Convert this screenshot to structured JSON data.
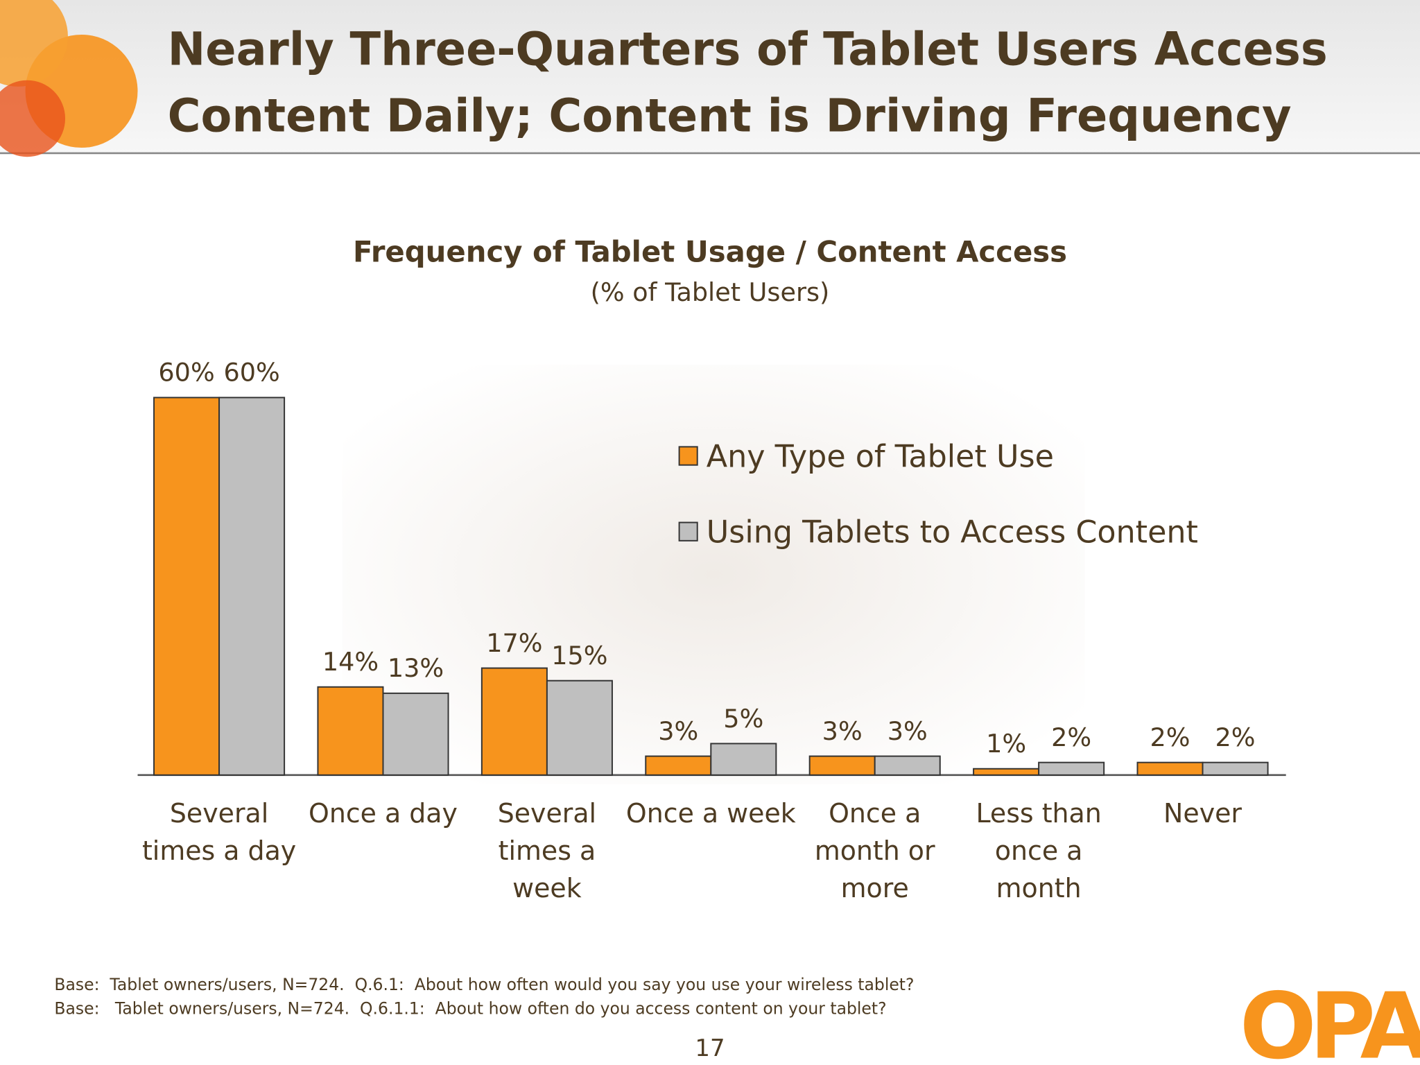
{
  "chart_data": {
    "type": "bar",
    "title": "Nearly Three-Quarters of Tablet Users Access Content Daily; Content is Driving Frequency",
    "chart_title": "Frequency of Tablet Usage / Content Access",
    "subtitle": "(% of Tablet Users)",
    "categories": [
      "Several times a day",
      "Once a day",
      "Several times a week",
      "Once a week",
      "Once a month or more",
      "Less than once a month",
      "Never"
    ],
    "series": [
      {
        "name": "Any Type of Tablet Use",
        "color": "#f7941d",
        "values": [
          60,
          14,
          17,
          3,
          3,
          1,
          2
        ],
        "value_labels": [
          "60%",
          "14%",
          "17%",
          "3%",
          "3%",
          "1%",
          "2%"
        ]
      },
      {
        "name": "Using Tablets to Access Content",
        "color": "#bfbfbf",
        "values": [
          60,
          13,
          15,
          5,
          3,
          2,
          2
        ],
        "value_labels": [
          "60%",
          "13%",
          "15%",
          "5%",
          "3%",
          "2%",
          "2%"
        ]
      }
    ],
    "legend": "upper right",
    "footnotes": [
      "Base:  Tablet owners/users, N=724.  Q.6.1:  About how often would you say you use your wireless tablet?",
      "Base:   Tablet owners/users, N=724.  Q.6.1.1:  About how often do you access content on your tablet?"
    ],
    "page_number": "17",
    "logo": "OPA"
  }
}
